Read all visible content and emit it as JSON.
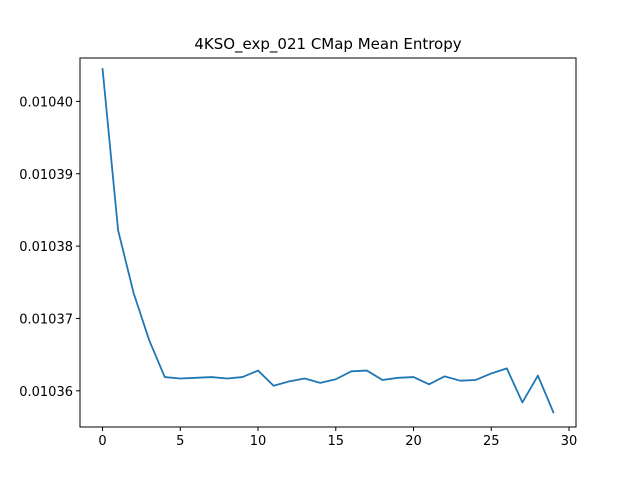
{
  "chart_data": {
    "type": "line",
    "title": "4KSO_exp_021 CMap Mean Entropy",
    "xlabel": "",
    "ylabel": "",
    "xlim": [
      -1.45,
      30.45
    ],
    "ylim": [
      0.010355,
      0.010406
    ],
    "x_ticks": [
      0,
      5,
      10,
      15,
      20,
      25,
      30
    ],
    "x_tick_labels": [
      "0",
      "5",
      "10",
      "15",
      "20",
      "25",
      "30"
    ],
    "y_ticks": [
      0.01036,
      0.01037,
      0.01038,
      0.01039,
      0.0104
    ],
    "y_tick_labels": [
      "0.01036",
      "0.01037",
      "0.01038",
      "0.01039",
      "0.01040"
    ],
    "grid": false,
    "legend": "none",
    "series": [
      {
        "color": "#1f77b4",
        "x": [
          0,
          1,
          2,
          3,
          4,
          5,
          6,
          7,
          8,
          9,
          10,
          11,
          12,
          13,
          14,
          15,
          16,
          17,
          18,
          19,
          20,
          21,
          22,
          23,
          24,
          25,
          26,
          27,
          28,
          29
        ],
        "values": [
          0.0104045,
          0.0103822,
          0.0103735,
          0.010367,
          0.0103619,
          0.0103617,
          0.0103618,
          0.0103619,
          0.0103617,
          0.0103619,
          0.0103628,
          0.0103607,
          0.0103613,
          0.0103617,
          0.0103611,
          0.0103616,
          0.0103627,
          0.0103628,
          0.0103615,
          0.0103618,
          0.0103619,
          0.0103609,
          0.010362,
          0.0103614,
          0.0103615,
          0.0103624,
          0.0103631,
          0.0103584,
          0.0103621,
          0.010357
        ]
      }
    ]
  }
}
